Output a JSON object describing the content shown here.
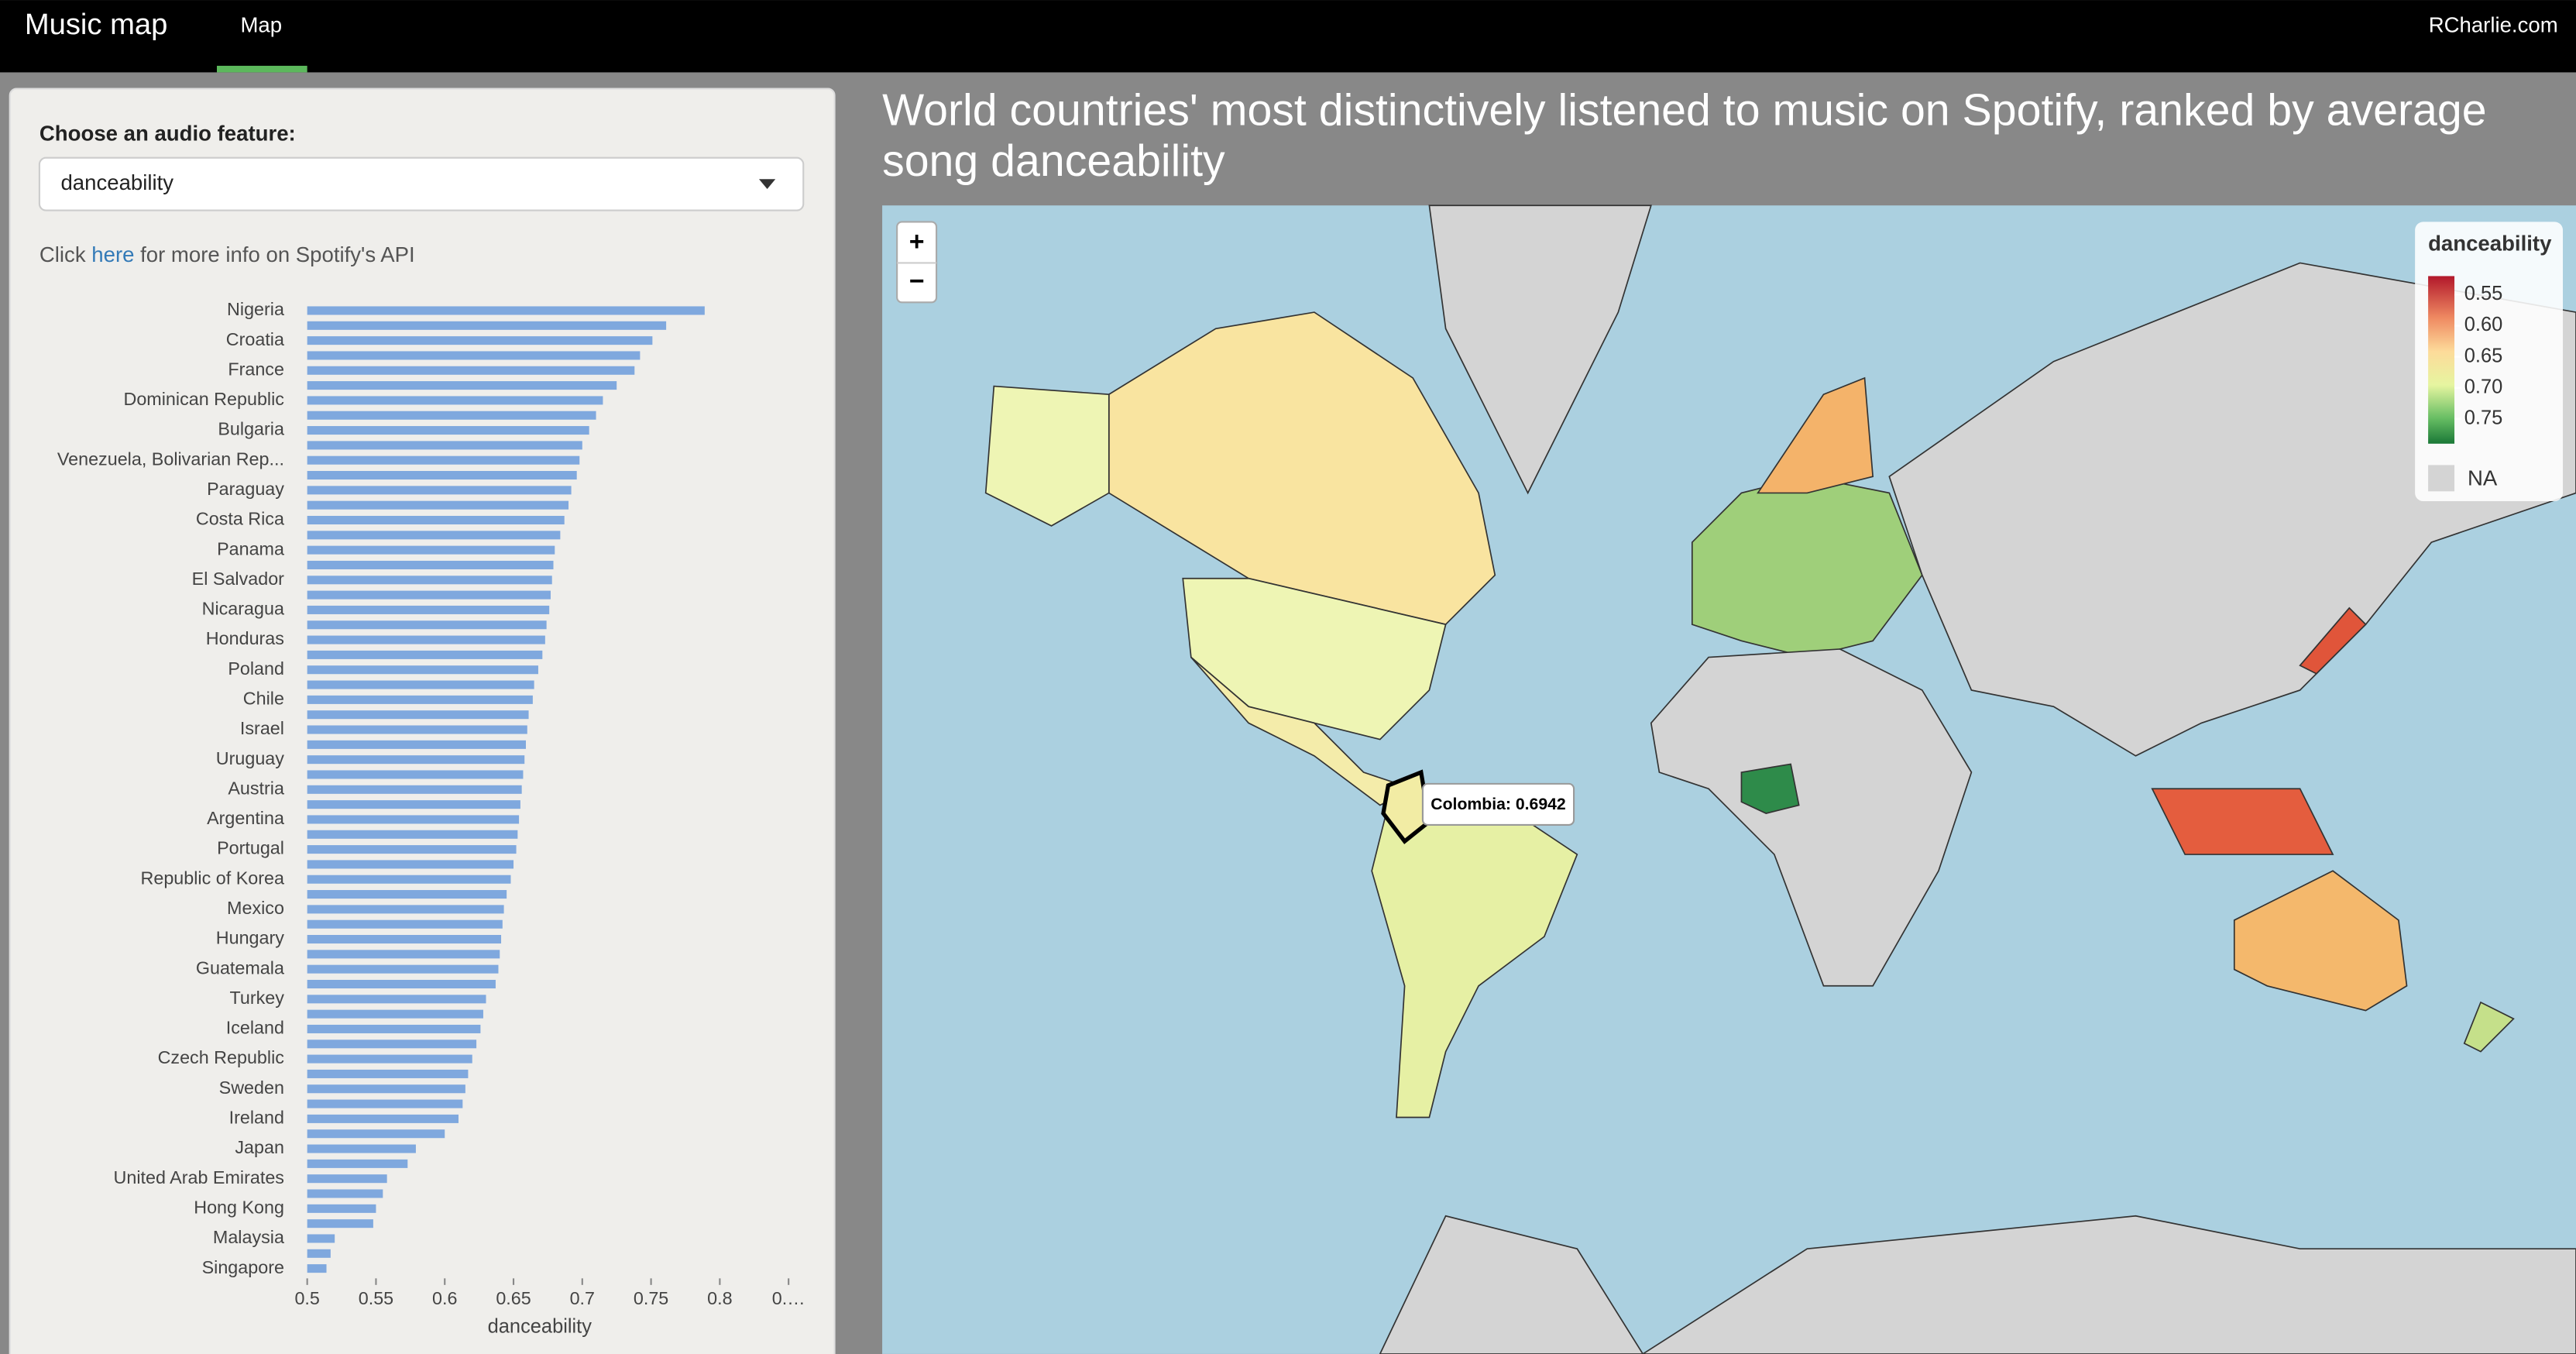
{
  "navbar": {
    "brand": "Music map",
    "tab": "Map",
    "link": "RCharlie.com"
  },
  "sidebar": {
    "label": "Choose an audio feature:",
    "select": "danceability",
    "info_before": "Click ",
    "info_link": "here",
    "info_after": " for more info on Spotify's API"
  },
  "chart_data": {
    "type": "bar",
    "orientation": "horizontal",
    "color": "#7fa8de",
    "categories": [
      "Nigeria",
      null,
      "Croatia",
      null,
      "France",
      null,
      "Dominican Republic",
      null,
      "Bulgaria",
      null,
      "Venezuela, Bolivarian Rep...",
      null,
      "Paraguay",
      null,
      "Costa Rica",
      null,
      "Panama",
      null,
      "El Salvador",
      null,
      "Nicaragua",
      null,
      "Honduras",
      null,
      "Poland",
      null,
      "Chile",
      null,
      "Israel",
      null,
      "Uruguay",
      null,
      "Austria",
      null,
      "Argentina",
      null,
      "Portugal",
      null,
      "Republic of Korea",
      null,
      "Mexico",
      null,
      "Hungary",
      null,
      "Guatemala",
      null,
      "Turkey",
      null,
      "Iceland",
      null,
      "Czech Republic",
      null,
      "Sweden",
      null,
      "Ireland",
      null,
      "Japan",
      null,
      "United Arab Emirates",
      null,
      "Hong Kong",
      null,
      "Malaysia",
      null,
      "Singapore"
    ],
    "values": [
      0.789,
      0.761,
      0.751,
      0.742,
      0.738,
      0.725,
      0.715,
      0.71,
      0.705,
      0.7,
      0.698,
      0.696,
      0.692,
      0.69,
      0.687,
      0.684,
      0.68,
      0.679,
      0.678,
      0.677,
      0.676,
      0.674,
      0.673,
      0.671,
      0.668,
      0.665,
      0.664,
      0.661,
      0.66,
      0.659,
      0.658,
      0.657,
      0.656,
      0.655,
      0.654,
      0.653,
      0.652,
      0.65,
      0.648,
      0.645,
      0.643,
      0.642,
      0.641,
      0.64,
      0.639,
      0.637,
      0.63,
      0.628,
      0.626,
      0.623,
      0.62,
      0.617,
      0.615,
      0.613,
      0.61,
      0.6,
      0.579,
      0.573,
      0.558,
      0.555,
      0.55,
      0.548,
      0.52,
      0.517,
      0.514
    ],
    "xlim": [
      0.5,
      0.85
    ],
    "xticks": [
      0.5,
      0.55,
      0.6,
      0.65,
      0.7,
      0.75,
      0.8,
      {
        "value": 0.85,
        "label": "0.…"
      }
    ],
    "x_label": "danceability"
  },
  "map": {
    "title": "World countries' most distinctively listened to music on Spotify, ranked by average song danceability",
    "zoom_in": "+",
    "zoom_out": "−",
    "tooltip": "Colombia: 0.6942",
    "legend": {
      "title": "danceability",
      "ylim": [
        0.52,
        0.79
      ],
      "ticks": [
        0.55,
        {
          "value": 0.6,
          "label": "0.60"
        },
        0.65,
        {
          "value": 0.7,
          "label": "0.70"
        },
        0.75
      ],
      "na": "NA"
    }
  }
}
